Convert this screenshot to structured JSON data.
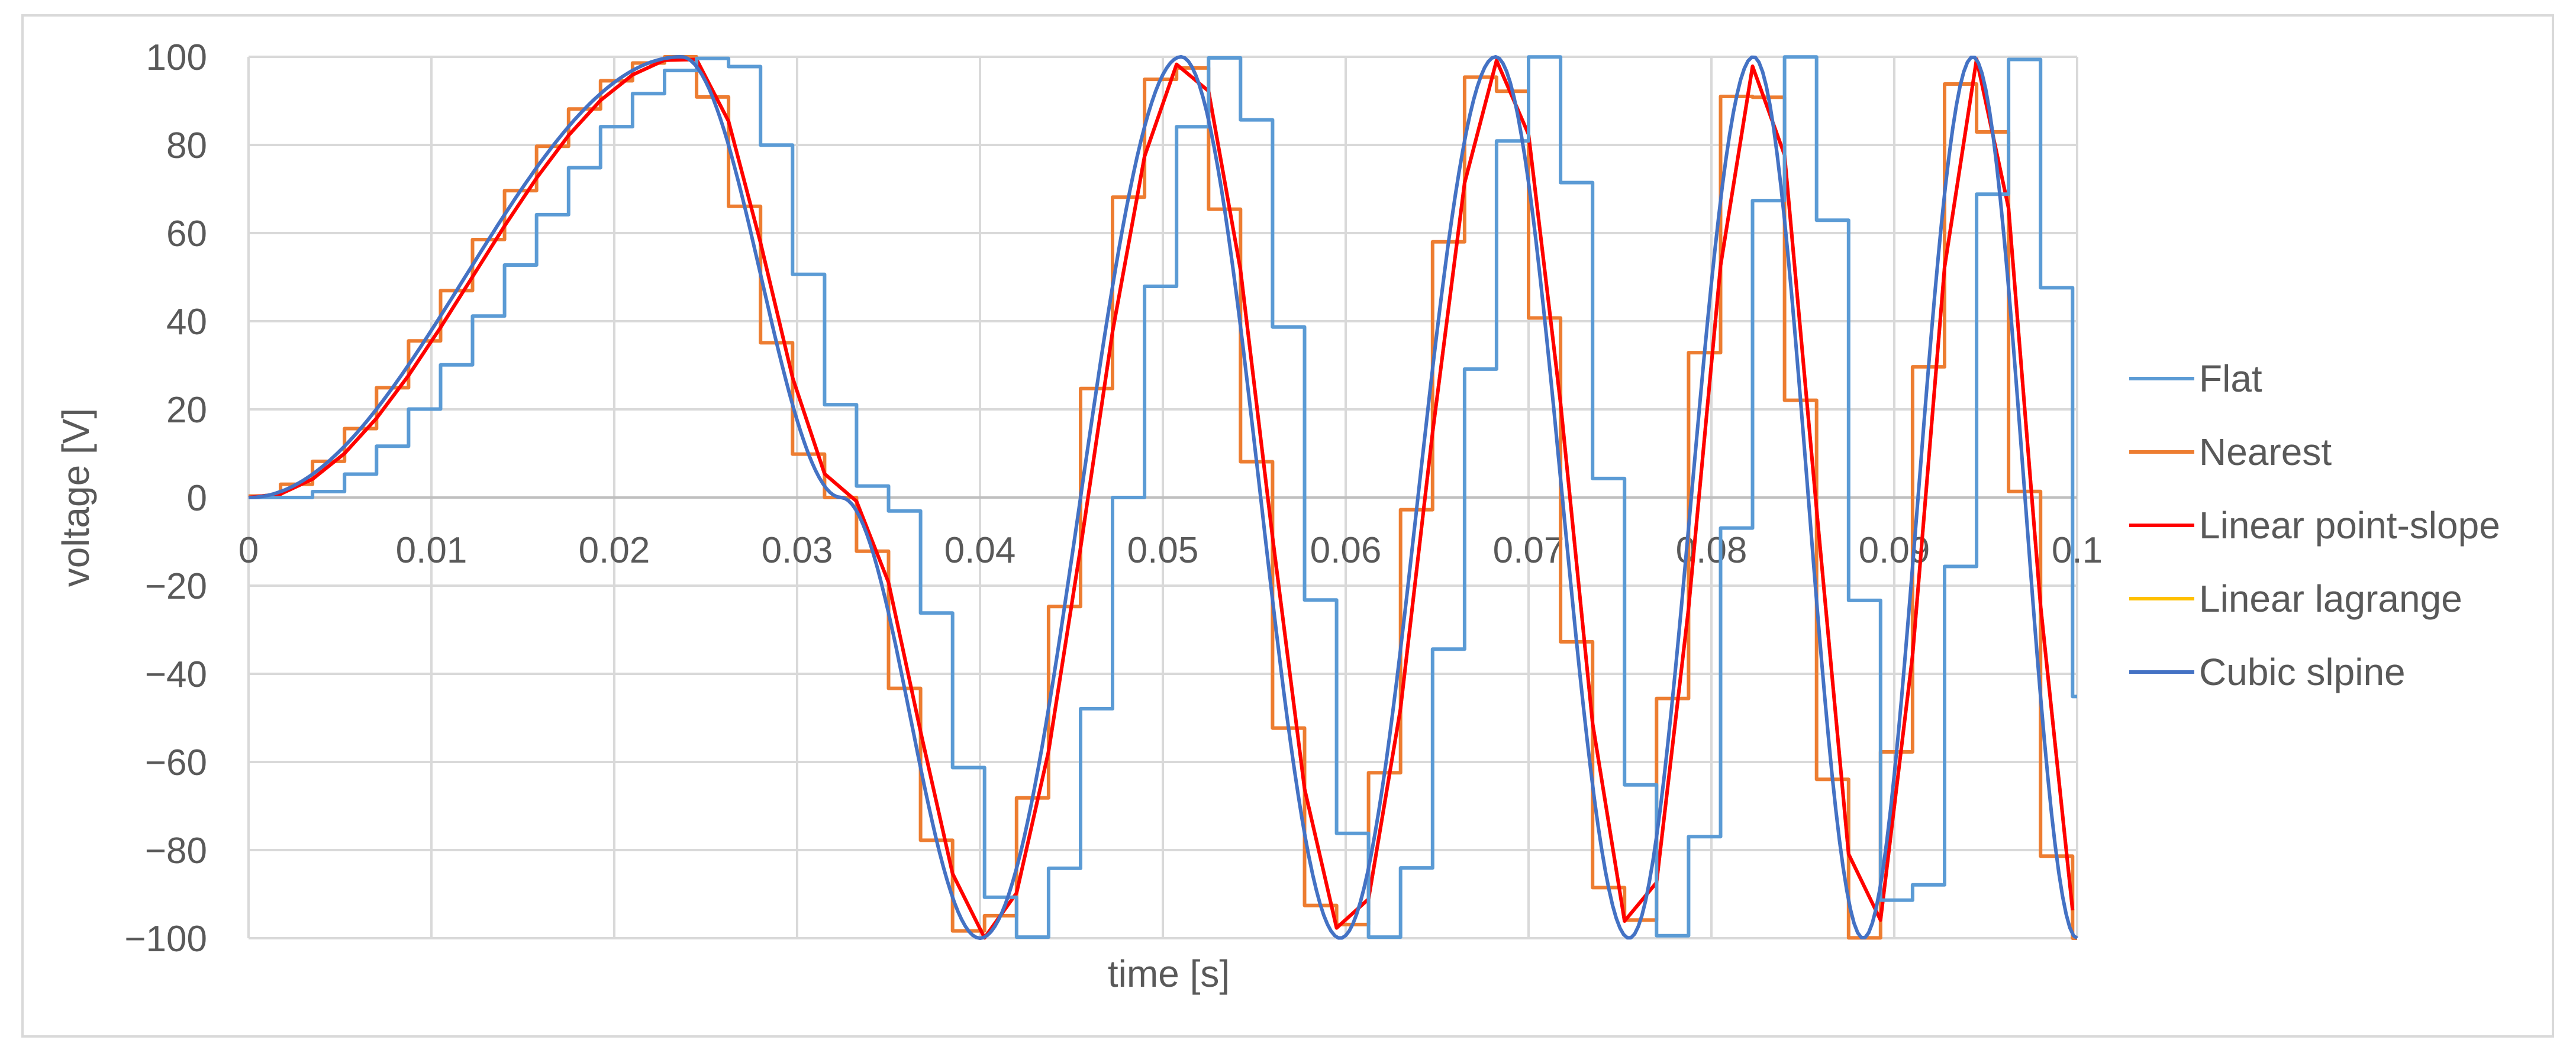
{
  "chart_data": {
    "type": "line",
    "xlabel": "time [s]",
    "ylabel": "voltage [V]",
    "xlim": [
      0,
      0.1
    ],
    "ylim": [
      -100,
      100
    ],
    "x_ticks": [
      "0",
      "0.01",
      "0.02",
      "0.03",
      "0.04",
      "0.05",
      "0.06",
      "0.07",
      "0.08",
      "0.09",
      "0.1"
    ],
    "y_ticks": [
      "100",
      "80",
      "60",
      "40",
      "20",
      "0",
      "−20",
      "−40",
      "−60",
      "−80",
      "−100"
    ],
    "grid": true,
    "legend_position": "right",
    "signal": {
      "description_points_t": [
        0,
        0.02367,
        0.0324,
        0.04,
        0.051,
        0.0597,
        0.0682,
        0.0755,
        0.0823,
        0.0883,
        0.0943,
        0.1
      ],
      "extrema_v": [
        0,
        100,
        0,
        -100,
        100,
        -100,
        100,
        -100,
        100,
        -100,
        100,
        -100
      ]
    },
    "series": [
      {
        "name": "Flat",
        "color": "#5b9bd5",
        "style": "step-hold",
        "step": 0.00175,
        "lag": 0.00175
      },
      {
        "name": "Nearest",
        "color": "#ed7d31",
        "style": "step-nearest",
        "step": 0.00175,
        "lag": 0.0
      },
      {
        "name": "Linear point-slope",
        "color": "#ff0000",
        "style": "linear",
        "step": 0.00175,
        "lag": 0.0004
      },
      {
        "name": "Linear lagrange",
        "color": "#ffc000",
        "style": "linear",
        "step": 0.00175,
        "lag": 0.0004
      },
      {
        "name": "Cubic slpine",
        "color": "#4472c4",
        "style": "smooth",
        "step": 0.00175,
        "lag": 0.0
      }
    ]
  }
}
